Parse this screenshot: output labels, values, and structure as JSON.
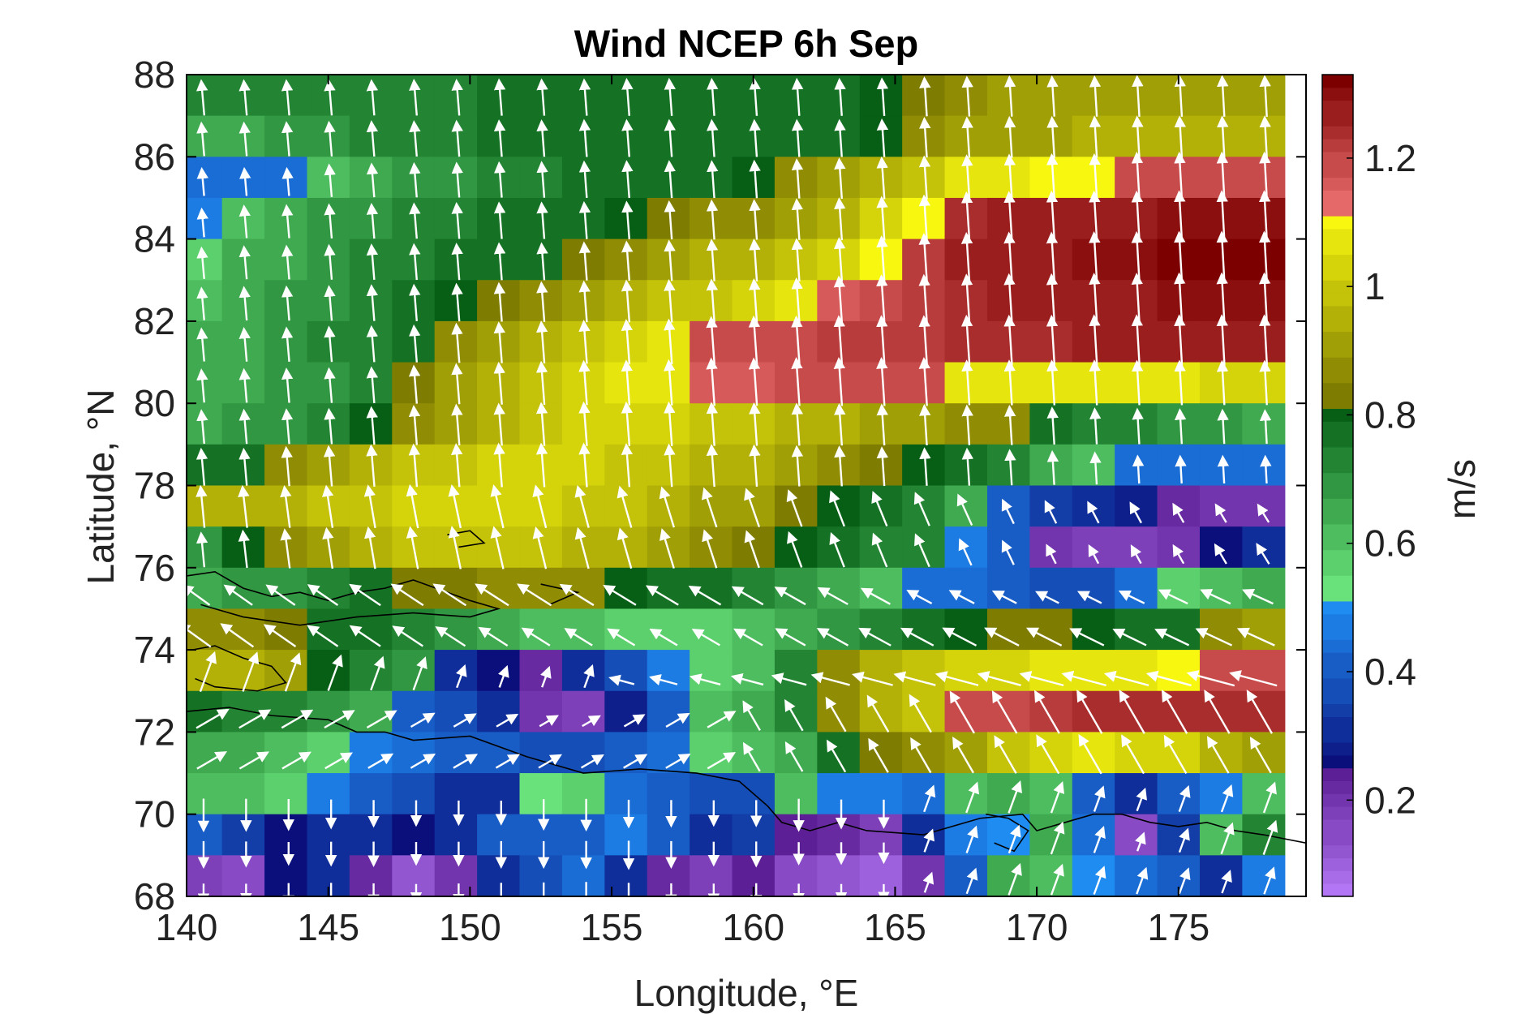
{
  "chart_data": {
    "type": "heatmap",
    "title": "Wind NCEP 6h Sep",
    "xlabel": "Longitude, °E",
    "ylabel": "Latitude, °N",
    "xlim": [
      140,
      179.5
    ],
    "ylim": [
      68,
      88
    ],
    "x_ticks": [
      140,
      145,
      150,
      155,
      160,
      165,
      170,
      175
    ],
    "y_ticks": [
      68,
      70,
      72,
      74,
      76,
      78,
      80,
      82,
      84,
      86,
      88
    ],
    "colorbar": {
      "label": "m/s",
      "range": [
        0.05,
        1.33
      ],
      "ticks": [
        0.2,
        0.4,
        0.6,
        0.8,
        1,
        1.2
      ],
      "segments": [
        {
          "from": 0.05,
          "to": 0.25,
          "colors": [
            "#b377f5",
            "#5d1f95"
          ]
        },
        {
          "from": 0.25,
          "to": 0.5,
          "colors": [
            "#0b0f7c",
            "#1f8cf2"
          ]
        },
        {
          "from": 0.5,
          "to": 0.8,
          "colors": [
            "#78f58a",
            "#075f16"
          ]
        },
        {
          "from": 0.8,
          "to": 1.1,
          "colors": [
            "#6e6a00",
            "#f7f70f"
          ]
        },
        {
          "from": 1.1,
          "to": 1.33,
          "colors": [
            "#f57878",
            "#7d0000"
          ]
        }
      ]
    },
    "grid_x": [
      140.5,
      142.0,
      143.5,
      145.0,
      146.5,
      148.0,
      149.5,
      151.0,
      152.5,
      154.0,
      155.5,
      157.0,
      158.5,
      160.0,
      161.5,
      163.0,
      164.5,
      166.0,
      167.5,
      169.0,
      170.5,
      172.0,
      173.5,
      175.0,
      176.5,
      178.0
    ],
    "grid_y": [
      87.5,
      86.5,
      85.5,
      84.5,
      83.5,
      82.5,
      81.5,
      80.5,
      79.5,
      78.5,
      77.5,
      76.5,
      75.5,
      74.5,
      73.5,
      72.5,
      71.5,
      70.5,
      69.5,
      68.5
    ],
    "speed": [
      [
        0.72,
        0.72,
        0.72,
        0.72,
        0.72,
        0.74,
        0.74,
        0.76,
        0.76,
        0.76,
        0.78,
        0.78,
        0.78,
        0.78,
        0.78,
        0.78,
        0.8,
        0.85,
        0.88,
        0.9,
        0.9,
        0.9,
        0.92,
        0.92,
        0.92,
        0.92
      ],
      [
        0.66,
        0.66,
        0.68,
        0.7,
        0.72,
        0.72,
        0.74,
        0.76,
        0.76,
        0.78,
        0.78,
        0.78,
        0.78,
        0.78,
        0.78,
        0.78,
        0.8,
        0.88,
        0.9,
        0.92,
        0.92,
        0.94,
        0.94,
        0.94,
        0.94,
        0.94
      ],
      [
        0.45,
        0.45,
        0.45,
        0.62,
        0.66,
        0.68,
        0.7,
        0.72,
        0.74,
        0.76,
        0.78,
        0.78,
        0.78,
        0.8,
        0.86,
        0.9,
        0.95,
        1.0,
        1.05,
        1.08,
        1.1,
        1.1,
        1.18,
        1.18,
        1.18,
        1.18
      ],
      [
        0.48,
        0.62,
        0.64,
        0.68,
        0.7,
        0.72,
        0.74,
        0.76,
        0.76,
        0.78,
        0.8,
        0.82,
        0.86,
        0.88,
        0.92,
        0.96,
        1.02,
        1.1,
        1.24,
        1.26,
        1.28,
        1.28,
        1.28,
        1.3,
        1.3,
        1.3
      ],
      [
        0.58,
        0.64,
        0.66,
        0.7,
        0.72,
        0.74,
        0.76,
        0.78,
        0.78,
        0.82,
        0.86,
        0.9,
        0.94,
        0.96,
        0.98,
        1.02,
        1.1,
        1.22,
        1.26,
        1.28,
        1.28,
        1.3,
        1.3,
        1.32,
        1.32,
        1.32
      ],
      [
        0.62,
        0.66,
        0.68,
        0.7,
        0.74,
        0.76,
        0.8,
        0.84,
        0.88,
        0.92,
        0.96,
        0.98,
        1.0,
        1.02,
        1.06,
        1.15,
        1.2,
        1.22,
        1.24,
        1.26,
        1.26,
        1.28,
        1.28,
        1.3,
        1.3,
        1.3
      ],
      [
        0.64,
        0.66,
        0.68,
        0.72,
        0.74,
        0.78,
        0.86,
        0.92,
        0.96,
        1.0,
        1.04,
        1.06,
        1.18,
        1.2,
        1.2,
        1.22,
        1.22,
        1.22,
        1.24,
        1.24,
        1.24,
        1.26,
        1.26,
        1.26,
        1.26,
        1.26
      ],
      [
        0.64,
        0.66,
        0.68,
        0.7,
        0.74,
        0.82,
        0.9,
        0.96,
        1.0,
        1.04,
        1.06,
        1.08,
        1.16,
        1.16,
        1.18,
        1.18,
        1.18,
        1.18,
        1.06,
        1.06,
        1.06,
        1.06,
        1.05,
        1.05,
        1.04,
        1.04
      ],
      [
        0.66,
        0.68,
        0.7,
        0.72,
        0.8,
        0.86,
        0.92,
        0.96,
        1.0,
        1.02,
        1.02,
        1.02,
        1.0,
        0.98,
        0.96,
        0.94,
        0.92,
        0.9,
        0.88,
        0.86,
        0.78,
        0.74,
        0.72,
        0.7,
        0.68,
        0.66
      ],
      [
        0.78,
        0.78,
        0.86,
        0.9,
        0.94,
        0.98,
        1.0,
        1.02,
        1.02,
        1.02,
        1.0,
        0.98,
        0.96,
        0.94,
        0.9,
        0.88,
        0.84,
        0.8,
        0.78,
        0.72,
        0.66,
        0.6,
        0.45,
        0.44,
        0.44,
        0.44
      ],
      [
        0.96,
        0.96,
        0.96,
        0.98,
        1.0,
        1.02,
        1.02,
        1.02,
        1.02,
        1.0,
        0.98,
        0.96,
        0.92,
        0.9,
        0.84,
        0.8,
        0.78,
        0.74,
        0.66,
        0.4,
        0.34,
        0.3,
        0.28,
        0.22,
        0.2,
        0.2
      ],
      [
        0.7,
        0.8,
        0.86,
        0.92,
        0.96,
        0.98,
        1.0,
        1.0,
        0.98,
        0.96,
        0.94,
        0.92,
        0.88,
        0.84,
        0.8,
        0.76,
        0.74,
        0.72,
        0.48,
        0.4,
        0.2,
        0.18,
        0.18,
        0.2,
        0.26,
        0.3
      ],
      [
        0.66,
        0.68,
        0.7,
        0.74,
        0.78,
        0.82,
        0.84,
        0.86,
        0.88,
        0.86,
        0.8,
        0.78,
        0.76,
        0.72,
        0.7,
        0.66,
        0.62,
        0.44,
        0.44,
        0.4,
        0.36,
        0.38,
        0.44,
        0.58,
        0.62,
        0.64
      ],
      [
        0.86,
        0.88,
        0.82,
        0.76,
        0.76,
        0.74,
        0.7,
        0.66,
        0.62,
        0.6,
        0.58,
        0.58,
        0.58,
        0.62,
        0.66,
        0.7,
        0.74,
        0.76,
        0.8,
        0.82,
        0.84,
        0.8,
        0.76,
        0.78,
        0.86,
        0.9
      ],
      [
        0.96,
        0.94,
        0.9,
        0.8,
        0.72,
        0.7,
        0.3,
        0.26,
        0.22,
        0.3,
        0.36,
        0.46,
        0.56,
        0.62,
        0.72,
        0.86,
        0.94,
        0.98,
        1.02,
        1.04,
        1.06,
        1.08,
        1.08,
        1.1,
        1.2,
        1.2
      ],
      [
        0.78,
        0.74,
        0.72,
        0.68,
        0.66,
        0.42,
        0.36,
        0.32,
        0.2,
        0.18,
        0.28,
        0.4,
        0.6,
        0.66,
        0.72,
        0.86,
        0.96,
        1.0,
        1.18,
        1.2,
        1.22,
        1.24,
        1.24,
        1.24,
        1.24,
        1.24
      ],
      [
        0.66,
        0.64,
        0.62,
        0.56,
        0.46,
        0.44,
        0.42,
        0.4,
        0.38,
        0.36,
        0.4,
        0.44,
        0.58,
        0.62,
        0.66,
        0.76,
        0.84,
        0.88,
        0.92,
        1.0,
        1.04,
        1.06,
        1.04,
        1.02,
        0.96,
        0.92
      ],
      [
        0.62,
        0.6,
        0.56,
        0.48,
        0.4,
        0.36,
        0.32,
        0.3,
        0.54,
        0.58,
        0.44,
        0.4,
        0.36,
        0.38,
        0.6,
        0.48,
        0.46,
        0.44,
        0.6,
        0.66,
        0.62,
        0.4,
        0.3,
        0.42,
        0.46,
        0.6
      ],
      [
        0.4,
        0.34,
        0.26,
        0.3,
        0.32,
        0.26,
        0.3,
        0.4,
        0.4,
        0.42,
        0.46,
        0.4,
        0.3,
        0.34,
        0.24,
        0.22,
        0.18,
        0.3,
        0.46,
        0.5,
        0.66,
        0.44,
        0.14,
        0.34,
        0.62,
        0.74
      ],
      [
        0.18,
        0.16,
        0.26,
        0.3,
        0.22,
        0.12,
        0.2,
        0.3,
        0.36,
        0.44,
        0.3,
        0.22,
        0.18,
        0.24,
        0.16,
        0.12,
        0.1,
        0.2,
        0.4,
        0.64,
        0.6,
        0.5,
        0.44,
        0.42,
        0.3,
        0.46
      ]
    ],
    "vectors": {
      "description_units": "direction in degrees (0 = toward north, 90 = toward east), magnitude relative",
      "lon": [
        140.6,
        142.1,
        143.6,
        145.1,
        146.6,
        148.1,
        149.6,
        151.1,
        152.6,
        154.1,
        155.6,
        157.1,
        158.6,
        160.1,
        161.6,
        163.1,
        164.6,
        166.1,
        167.6,
        169.1,
        170.6,
        172.1,
        173.6,
        175.1,
        176.6,
        178.1
      ],
      "lat": [
        87.2,
        86.2,
        85.2,
        84.2,
        83.2,
        82.2,
        81.2,
        80.2,
        79.2,
        78.2,
        77.2,
        76.2,
        75.2,
        74.2,
        73.2,
        72.2,
        71.2,
        70.2,
        69.2,
        68.2
      ]
    },
    "land_outline": "coastlines of New Siberian Islands and East Siberian coast (black lines)"
  }
}
